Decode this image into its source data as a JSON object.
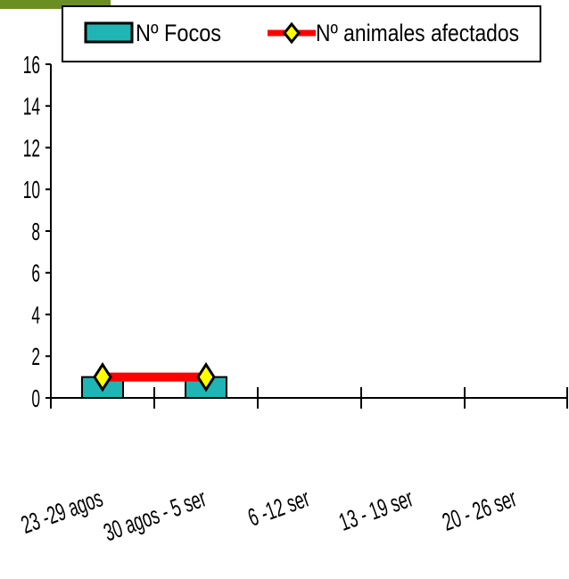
{
  "chart_data": {
    "type": "bar",
    "categories": [
      "23 -29 agos",
      "30 agos - 5 sep",
      "6 -12 sep",
      "13 - 19 sep",
      "20 - 26 sep"
    ],
    "categories_visible": [
      "23 -29 agos",
      "30 agos - 5 ser",
      "6 -12 ser",
      "13 - 19 ser",
      "20 - 26 ser"
    ],
    "series": [
      {
        "name": "Nº Focos",
        "kind": "bar",
        "values": [
          1,
          1,
          null,
          null,
          null
        ],
        "color": "#1fb5b5"
      },
      {
        "name": "Nº animales afectados",
        "kind": "line",
        "values": [
          1,
          1,
          null,
          null,
          null
        ],
        "color": "#ff0000",
        "marker_color": "#ffff00"
      }
    ],
    "yticks": [
      "0",
      "2",
      "4",
      "6",
      "8",
      "10",
      "12",
      "14",
      "16"
    ],
    "ylim": [
      0,
      16
    ],
    "legend_position": "top",
    "grid": false,
    "title": "",
    "xlabel": "",
    "ylabel": ""
  },
  "colors": {
    "accent": "#6b8e23",
    "bar": "#1fb5b5",
    "line": "#ff0000",
    "marker": "#ffff00"
  }
}
